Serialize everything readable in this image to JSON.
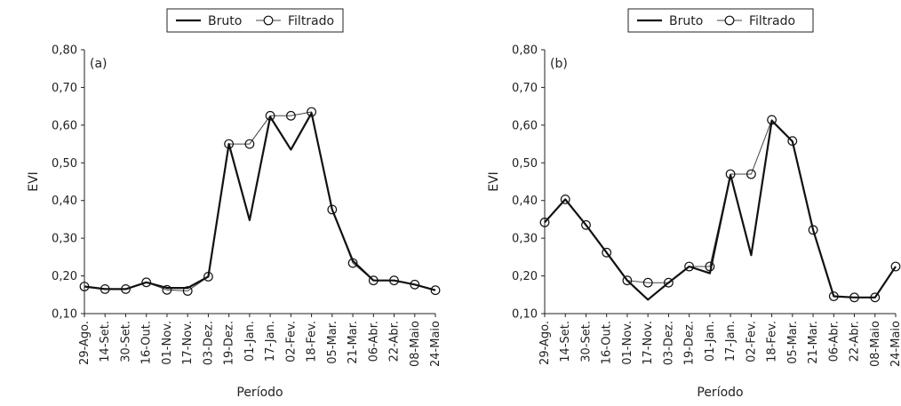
{
  "chart_data": [
    {
      "type": "line",
      "panel_label": "(a)",
      "xlabel": "Período",
      "ylabel": "EVI",
      "ylim": [
        0.1,
        0.8
      ],
      "yticks": [
        "0,10",
        "0,20",
        "0,30",
        "0,40",
        "0,50",
        "0,60",
        "0,70",
        "0,80"
      ],
      "grid": false,
      "legend_position": "top",
      "categories": [
        "29-Ago.",
        "14-Set.",
        "30-Set.",
        "16-Out.",
        "01-Nov.",
        "17-Nov.",
        "03-Dez.",
        "19-Dez.",
        "01-Jan.",
        "17-Jan.",
        "02-Fev.",
        "18-Fev.",
        "05-Mar.",
        "21-Mar.",
        "06-Abr.",
        "22-Abr.",
        "08-Maio",
        "24-Maio"
      ],
      "series": [
        {
          "name": "Bruto",
          "values": [
            0.172,
            0.165,
            0.165,
            0.183,
            0.168,
            0.168,
            0.198,
            0.55,
            0.348,
            0.622,
            0.535,
            0.632,
            0.376,
            0.24,
            0.188,
            0.188,
            0.177,
            0.162
          ]
        },
        {
          "name": "Filtrado",
          "values": [
            0.172,
            0.165,
            0.165,
            0.183,
            0.163,
            0.16,
            0.198,
            0.55,
            0.55,
            0.625,
            0.625,
            0.635,
            0.376,
            0.234,
            0.188,
            0.188,
            0.177,
            0.162
          ]
        }
      ]
    },
    {
      "type": "line",
      "panel_label": "(b)",
      "xlabel": "Período",
      "ylabel": "EVI",
      "ylim": [
        0.1,
        0.8
      ],
      "yticks": [
        "0,10",
        "0,20",
        "0,30",
        "0,40",
        "0,50",
        "0,60",
        "0,70",
        "0,80"
      ],
      "grid": false,
      "legend_position": "top",
      "categories": [
        "29-Ago.",
        "14-Set.",
        "30-Set.",
        "16-Out.",
        "01-Nov.",
        "17-Nov.",
        "03-Dez.",
        "19-Dez.",
        "01-Jan.",
        "17-Jan.",
        "02-Fev.",
        "18-Fev.",
        "05-Mar.",
        "21-Mar.",
        "06-Abr.",
        "22-Abr.",
        "08-Maio",
        "24-Maio"
      ],
      "series": [
        {
          "name": "Bruto",
          "values": [
            0.342,
            0.403,
            0.335,
            0.262,
            0.188,
            0.137,
            0.182,
            0.225,
            0.207,
            0.468,
            0.255,
            0.612,
            0.557,
            0.322,
            0.146,
            0.143,
            0.143,
            0.225
          ]
        },
        {
          "name": "Filtrado",
          "values": [
            0.342,
            0.403,
            0.335,
            0.262,
            0.188,
            0.182,
            0.182,
            0.225,
            0.225,
            0.47,
            0.47,
            0.614,
            0.558,
            0.322,
            0.146,
            0.143,
            0.143,
            0.225
          ]
        }
      ]
    }
  ]
}
